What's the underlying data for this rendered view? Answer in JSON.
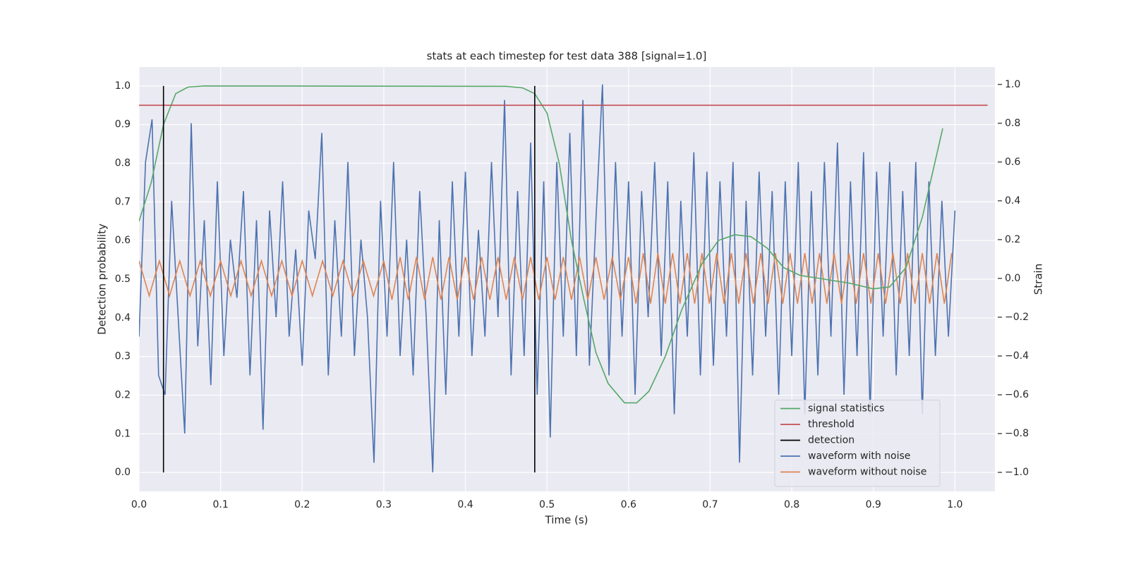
{
  "chart_data": {
    "type": "line",
    "title": "stats at each timestep for test data 388 [signal=1.0]",
    "xlabel": "Time (s)",
    "ylabel": "Detection probability",
    "y2label": "Strain",
    "xlim": [
      0,
      1.049
    ],
    "xticks": [
      {
        "value": 0,
        "label": "0.0"
      },
      0.1,
      0.2,
      0.3,
      0.4,
      0.5,
      0.6,
      0.7,
      0.8,
      0.9,
      {
        "value": 1,
        "label": "1.0"
      }
    ],
    "ylim": [
      -0.049,
      1.049
    ],
    "yticks": [
      {
        "value": 0,
        "label": "0.0"
      },
      0.1,
      0.2,
      0.3,
      0.4,
      0.5,
      0.6,
      0.7,
      0.8,
      0.9,
      {
        "value": 1,
        "label": "1.0"
      }
    ],
    "y2lim": [
      -1.098,
      1.09
    ],
    "y2ticks": [
      {
        "value": -1,
        "label": "−1.0"
      },
      {
        "value": -0.8,
        "label": "−0.8"
      },
      {
        "value": -0.6,
        "label": "−0.6"
      },
      {
        "value": -0.4,
        "label": "−0.4"
      },
      {
        "value": -0.2,
        "label": "−0.2"
      },
      {
        "value": 0,
        "label": "0.0"
      },
      0.2,
      0.4,
      0.6,
      0.8,
      {
        "value": 1,
        "label": "1.0"
      }
    ],
    "grid": true,
    "legend": "lower right",
    "series": [
      {
        "name": "signal statistics",
        "color": "#55a868",
        "x": [
          0,
          0.015,
          0.03,
          0.045,
          0.06,
          0.08,
          0.45,
          0.47,
          0.485,
          0.5,
          0.515,
          0.53,
          0.545,
          0.56,
          0.575,
          0.595,
          0.61,
          0.625,
          0.645,
          0.665,
          0.69,
          0.71,
          0.73,
          0.75,
          0.77,
          0.79,
          0.81,
          0.84,
          0.87,
          0.9,
          0.92,
          0.94,
          0.96,
          0.985
        ],
        "values": [
          0.65,
          0.75,
          0.9,
          0.98,
          0.997,
          1.0,
          0.999,
          0.995,
          0.98,
          0.93,
          0.8,
          0.6,
          0.45,
          0.31,
          0.23,
          0.18,
          0.18,
          0.21,
          0.3,
          0.42,
          0.54,
          0.6,
          0.615,
          0.61,
          0.58,
          0.53,
          0.51,
          0.5,
          0.49,
          0.475,
          0.48,
          0.53,
          0.66,
          0.89
        ]
      },
      {
        "name": "threshold",
        "color": "#c44e52",
        "x": [
          0,
          1.04
        ],
        "values": [
          0.95,
          0.95
        ]
      },
      {
        "name": "detection",
        "color": "#000000",
        "x": [
          0.03,
          0.03,
          null,
          0.485,
          0.485
        ],
        "values": [
          0,
          1,
          null,
          0,
          1
        ]
      },
      {
        "name": "waveform with noise",
        "color": "#4c72b0",
        "axis": "y2",
        "x": [
          0,
          0.008,
          0.016,
          0.024,
          0.032,
          0.04,
          0.048,
          0.056,
          0.064,
          0.072,
          0.08,
          0.088,
          0.096,
          0.104,
          0.112,
          0.12,
          0.128,
          0.136,
          0.144,
          0.152,
          0.16,
          0.168,
          0.176,
          0.184,
          0.192,
          0.2,
          0.208,
          0.216,
          0.224,
          0.232,
          0.24,
          0.248,
          0.256,
          0.264,
          0.272,
          0.28,
          0.288,
          0.296,
          0.304,
          0.312,
          0.32,
          0.328,
          0.336,
          0.344,
          0.352,
          0.36,
          0.368,
          0.376,
          0.384,
          0.392,
          0.4,
          0.408,
          0.416,
          0.424,
          0.432,
          0.44,
          0.448,
          0.456,
          0.464,
          0.472,
          0.48,
          0.488,
          0.496,
          0.504,
          0.512,
          0.52,
          0.528,
          0.536,
          0.544,
          0.552,
          0.56,
          0.568,
          0.576,
          0.584,
          0.592,
          0.6,
          0.608,
          0.616,
          0.624,
          0.632,
          0.64,
          0.648,
          0.656,
          0.664,
          0.672,
          0.68,
          0.688,
          0.696,
          0.704,
          0.712,
          0.72,
          0.728,
          0.736,
          0.744,
          0.752,
          0.76,
          0.768,
          0.776,
          0.784,
          0.792,
          0.8,
          0.808,
          0.816,
          0.824,
          0.832,
          0.84,
          0.848,
          0.856,
          0.864,
          0.872,
          0.88,
          0.888,
          0.896,
          0.904,
          0.912,
          0.92,
          0.928,
          0.936,
          0.944,
          0.952,
          0.96,
          0.968,
          0.976,
          0.984,
          0.992,
          1.0
        ],
        "values": [
          -0.3,
          0.6,
          0.82,
          -0.5,
          -0.6,
          0.4,
          -0.2,
          -0.8,
          0.8,
          -0.35,
          0.3,
          -0.55,
          0.5,
          -0.4,
          0.2,
          -0.1,
          0.45,
          -0.5,
          0.3,
          -0.78,
          0.35,
          -0.2,
          0.5,
          -0.3,
          0.15,
          -0.45,
          0.35,
          0.1,
          0.75,
          -0.5,
          0.3,
          -0.3,
          0.6,
          -0.4,
          0.2,
          -0.2,
          -0.95,
          0.4,
          -0.3,
          0.6,
          -0.4,
          0.2,
          -0.5,
          0.45,
          -0.2,
          -1.0,
          0.3,
          -0.6,
          0.5,
          -0.3,
          0.55,
          -0.4,
          0.25,
          -0.3,
          0.6,
          -0.2,
          0.92,
          -0.5,
          0.45,
          -0.4,
          0.7,
          -0.6,
          0.5,
          -0.82,
          0.6,
          -0.3,
          0.75,
          -0.4,
          0.92,
          -0.45,
          0.3,
          1.0,
          -0.5,
          0.6,
          -0.3,
          0.5,
          -0.6,
          0.45,
          -0.2,
          0.6,
          -0.4,
          0.5,
          -0.7,
          0.4,
          -0.3,
          0.65,
          -0.5,
          0.55,
          -0.45,
          0.5,
          -0.3,
          0.6,
          -0.95,
          0.4,
          -0.5,
          0.55,
          -0.3,
          0.45,
          -0.6,
          0.5,
          -0.4,
          0.6,
          -0.7,
          0.45,
          -0.5,
          0.6,
          -0.3,
          0.7,
          -0.6,
          0.5,
          -0.4,
          0.65,
          -0.7,
          0.55,
          -0.3,
          0.6,
          -0.5,
          0.45,
          -0.4,
          0.6,
          -0.7,
          0.5,
          -0.4,
          0.4,
          -0.3,
          0.35
        ]
      },
      {
        "name": "waveform without noise",
        "color": "#dd8452",
        "axis": "y2",
        "x": [
          0,
          0.0125,
          0.025,
          0.0375,
          0.05,
          0.0625,
          0.075,
          0.0875,
          0.1,
          0.1125,
          0.125,
          0.1375,
          0.15,
          0.1625,
          0.175,
          0.1875,
          0.2,
          0.2125,
          0.225,
          0.2375,
          0.25,
          0.2625,
          0.275,
          0.2875,
          0.3,
          0.31,
          0.32,
          0.33,
          0.34,
          0.35,
          0.36,
          0.37,
          0.38,
          0.39,
          0.4,
          0.41,
          0.42,
          0.43,
          0.44,
          0.45,
          0.46,
          0.47,
          0.48,
          0.49,
          0.5,
          0.51,
          0.52,
          0.53,
          0.54,
          0.55,
          0.56,
          0.57,
          0.58,
          0.59,
          0.6,
          0.609,
          0.618,
          0.627,
          0.636,
          0.645,
          0.654,
          0.663,
          0.672,
          0.681,
          0.69,
          0.699,
          0.708,
          0.717,
          0.726,
          0.735,
          0.744,
          0.753,
          0.762,
          0.771,
          0.78,
          0.789,
          0.798,
          0.807,
          0.816,
          0.825,
          0.834,
          0.843,
          0.852,
          0.861,
          0.87,
          0.879,
          0.888,
          0.897,
          0.906,
          0.915,
          0.924,
          0.933,
          0.942,
          0.951,
          0.96,
          0.969,
          0.978,
          0.987,
          0.996
        ],
        "values": [
          0.09,
          -0.09,
          0.09,
          -0.09,
          0.09,
          -0.09,
          0.09,
          -0.09,
          0.09,
          -0.09,
          0.09,
          -0.09,
          0.09,
          -0.09,
          0.09,
          -0.09,
          0.09,
          -0.09,
          0.09,
          -0.09,
          0.09,
          -0.09,
          0.09,
          -0.09,
          0.09,
          -0.11,
          0.11,
          -0.11,
          0.11,
          -0.11,
          0.11,
          -0.11,
          0.11,
          -0.11,
          0.11,
          -0.11,
          0.11,
          -0.11,
          0.11,
          -0.11,
          0.11,
          -0.11,
          0.11,
          -0.11,
          0.11,
          -0.11,
          0.11,
          -0.11,
          0.11,
          -0.11,
          0.11,
          -0.11,
          0.11,
          -0.11,
          0.11,
          -0.13,
          0.13,
          -0.13,
          0.13,
          -0.13,
          0.13,
          -0.13,
          0.13,
          -0.13,
          0.13,
          -0.13,
          0.13,
          -0.13,
          0.13,
          -0.13,
          0.13,
          -0.13,
          0.13,
          -0.13,
          0.13,
          -0.13,
          0.13,
          -0.13,
          0.13,
          -0.13,
          0.13,
          -0.13,
          0.13,
          -0.13,
          0.13,
          -0.13,
          0.13,
          -0.13,
          0.13,
          -0.13,
          0.13,
          -0.13,
          0.13,
          -0.13,
          0.13,
          -0.13,
          0.13,
          -0.13,
          0.13
        ]
      }
    ]
  }
}
